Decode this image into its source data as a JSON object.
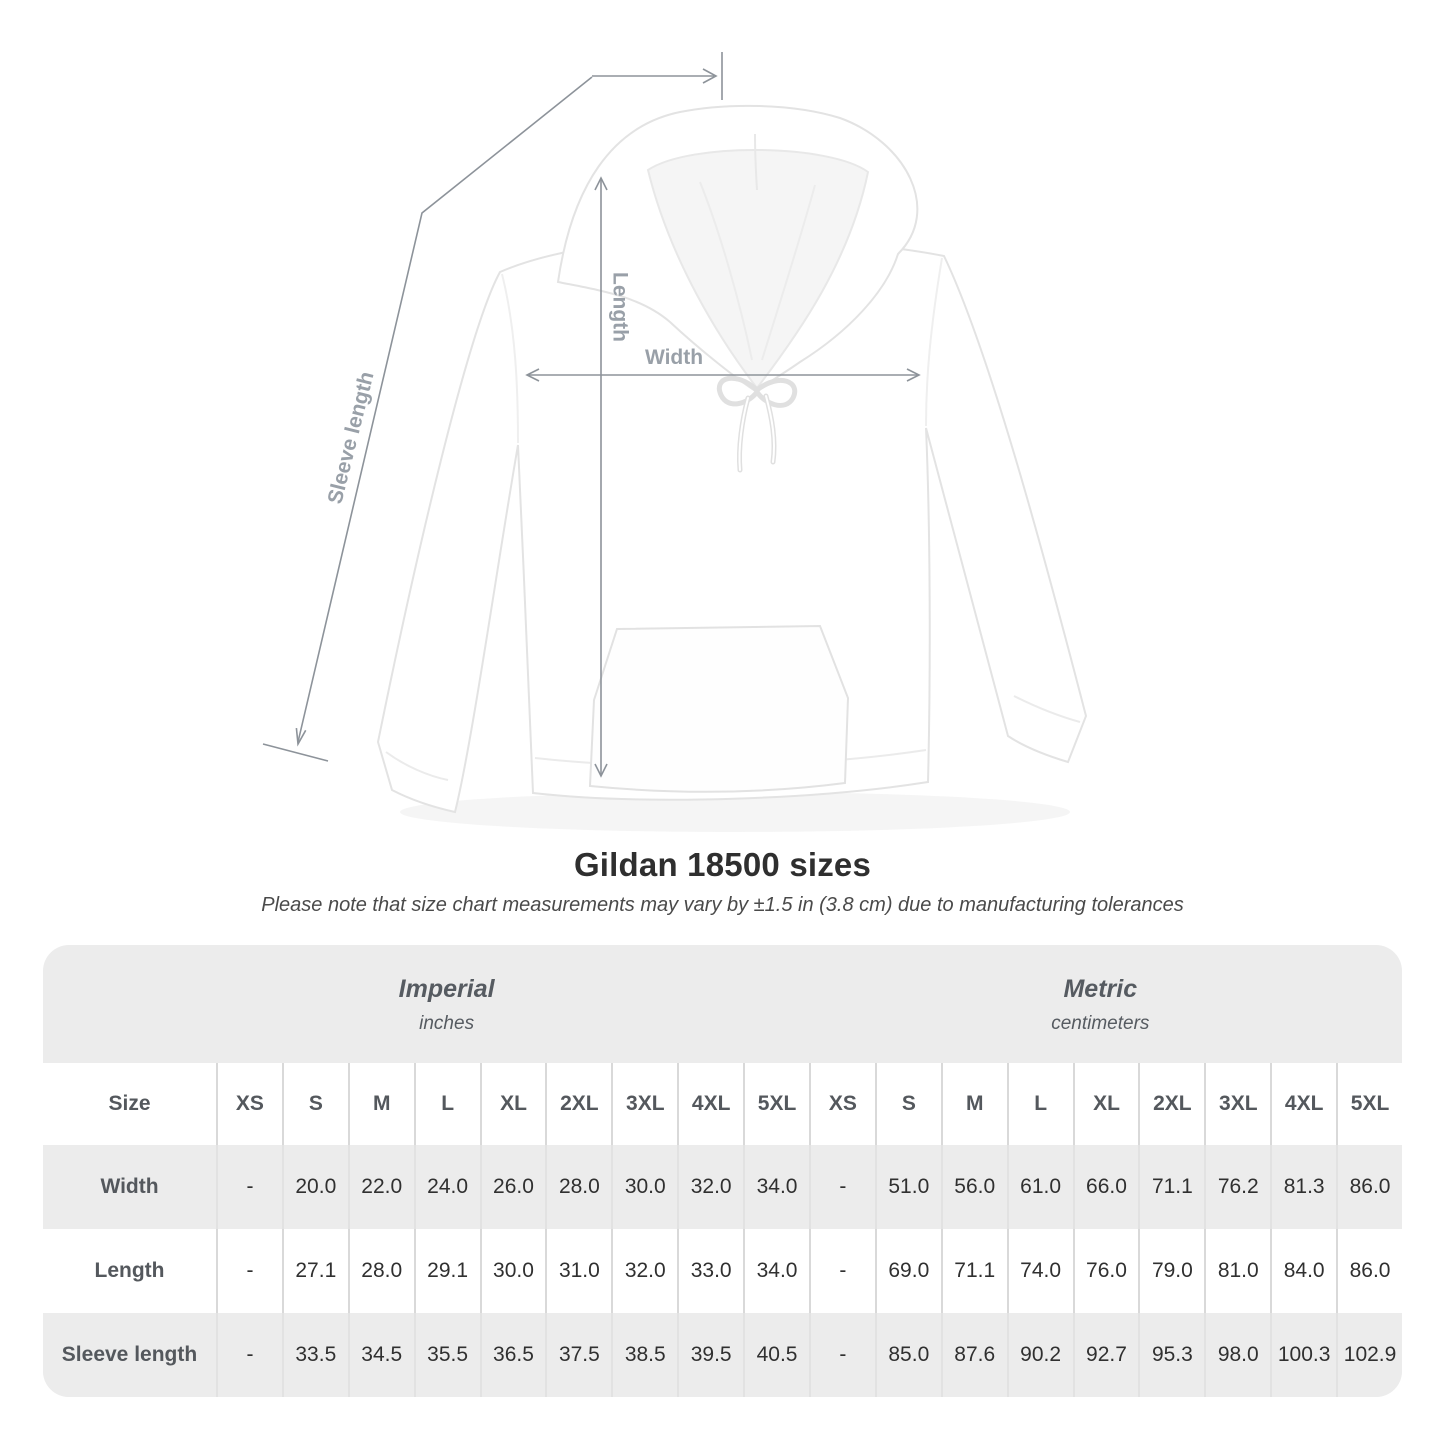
{
  "title": "Gildan 18500 sizes",
  "note": "Please note that size chart measurements may vary by ±1.5 in (3.8 cm) due to manufacturing tolerances",
  "figure": {
    "length_label": "Length",
    "width_label": "Width",
    "sleeve_label": "Sleeve length"
  },
  "table": {
    "size_label": "Size",
    "imperial": {
      "title": "Imperial",
      "unit": "inches"
    },
    "metric": {
      "title": "Metric",
      "unit": "centimeters"
    },
    "columns": [
      "XS",
      "S",
      "M",
      "L",
      "XL",
      "2XL",
      "3XL",
      "4XL",
      "5XL"
    ],
    "rows": [
      {
        "label": "Width",
        "imperial": [
          "-",
          "20.0",
          "22.0",
          "24.0",
          "26.0",
          "28.0",
          "30.0",
          "32.0",
          "34.0"
        ],
        "metric": [
          "-",
          "51.0",
          "56.0",
          "61.0",
          "66.0",
          "71.1",
          "76.2",
          "81.3",
          "86.0"
        ]
      },
      {
        "label": "Length",
        "imperial": [
          "-",
          "27.1",
          "28.0",
          "29.1",
          "30.0",
          "31.0",
          "32.0",
          "33.0",
          "34.0"
        ],
        "metric": [
          "-",
          "69.0",
          "71.1",
          "74.0",
          "76.0",
          "79.0",
          "81.0",
          "84.0",
          "86.0"
        ]
      },
      {
        "label": "Sleeve length",
        "imperial": [
          "-",
          "33.5",
          "34.5",
          "35.5",
          "36.5",
          "37.5",
          "38.5",
          "39.5",
          "40.5"
        ],
        "metric": [
          "-",
          "85.0",
          "87.6",
          "90.2",
          "92.7",
          "95.3",
          "98.0",
          "100.3",
          "102.9"
        ]
      }
    ]
  },
  "colors": {
    "annotation_line": "#8d939a",
    "annotation_label": "#99a0a8",
    "table_background": "#ececec",
    "divider": "#d9d9d9",
    "header_text": "#54585d",
    "value_text": "#303030"
  }
}
